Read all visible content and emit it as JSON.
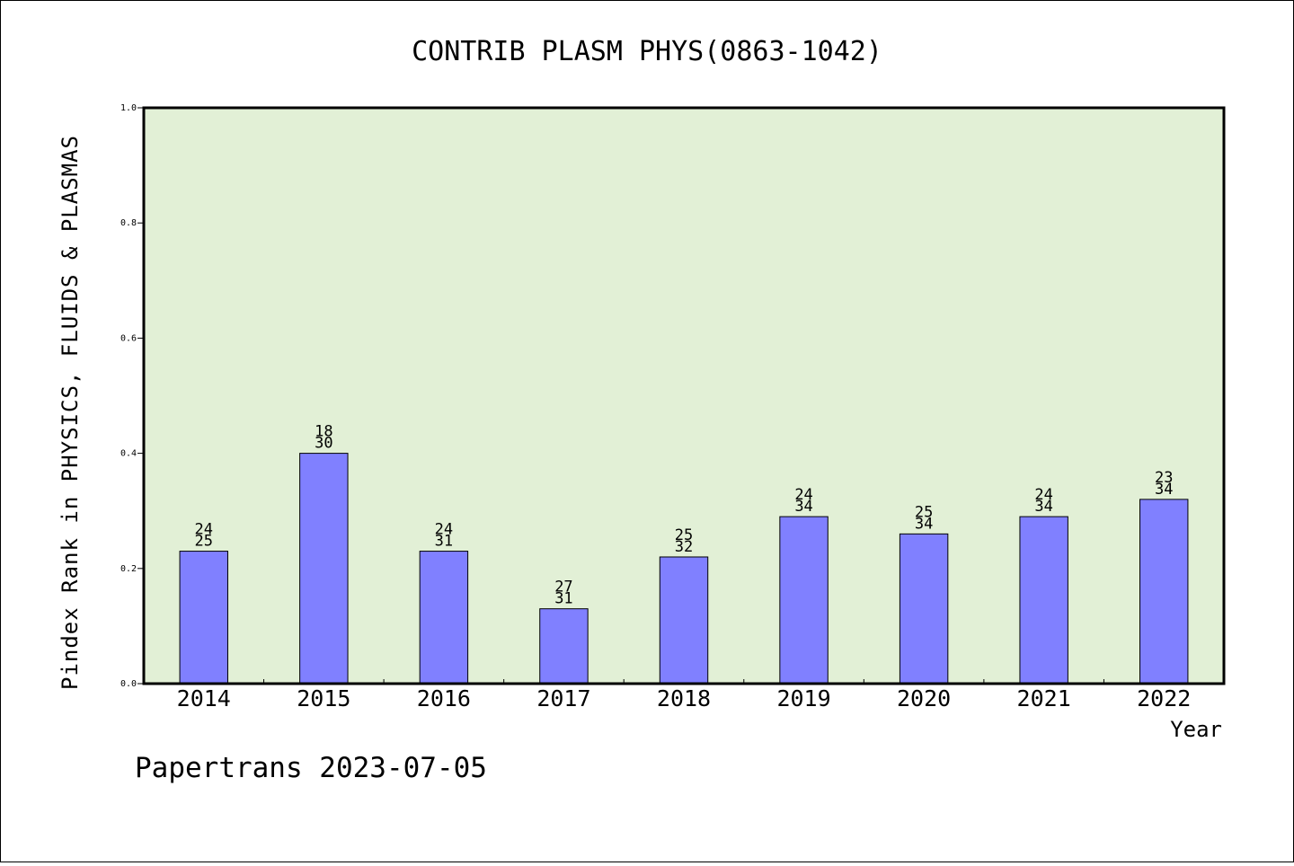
{
  "chart_data": {
    "type": "bar",
    "title": "CONTRIB PLASM PHYS(0863-1042)",
    "xlabel": "Year",
    "ylabel": "Pindex Rank in PHYSICS, FLUIDS & PLASMAS",
    "ylim": [
      0,
      1.0
    ],
    "yticks": [
      "0.0",
      "0.2",
      "0.4",
      "0.6",
      "0.8",
      "1.0"
    ],
    "categories": [
      "2014",
      "2015",
      "2016",
      "2017",
      "2018",
      "2019",
      "2020",
      "2021",
      "2022"
    ],
    "values": [
      0.23,
      0.4,
      0.23,
      0.13,
      0.22,
      0.29,
      0.26,
      0.29,
      0.32
    ],
    "rank_labels": [
      "24",
      "18",
      "24",
      "27",
      "25",
      "24",
      "25",
      "24",
      "23"
    ],
    "total_labels": [
      "25",
      "30",
      "31",
      "31",
      "32",
      "34",
      "34",
      "34",
      "34"
    ],
    "colors": {
      "bar": "#8080ff",
      "plot_bg": "#e2f0d6"
    }
  },
  "footer": "Papertrans 2023-07-05"
}
